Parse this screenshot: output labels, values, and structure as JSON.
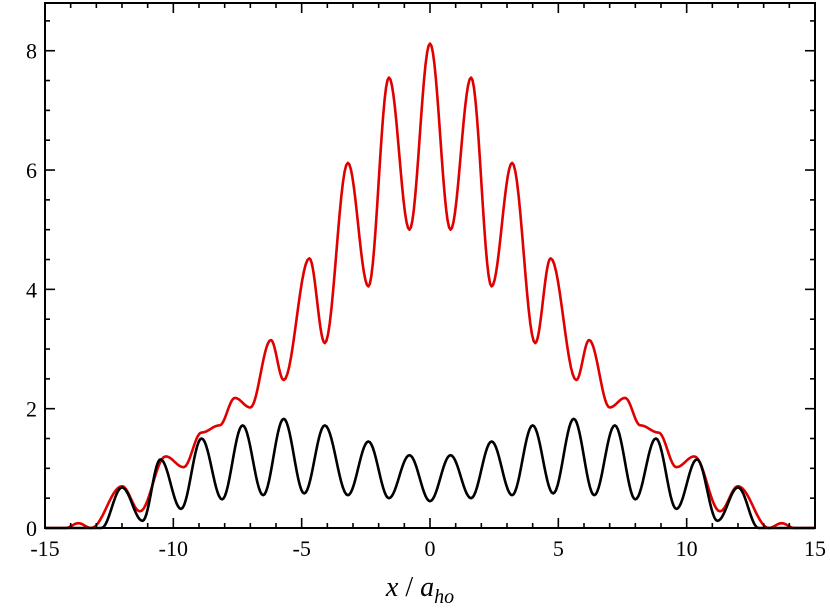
{
  "chart_data": {
    "type": "line",
    "title": "",
    "xlabel": {
      "var": "x",
      "sep": " / ",
      "base": "a",
      "sub": "ho"
    },
    "ylabel": "",
    "xlim": [
      -15,
      15
    ],
    "ylim": [
      0,
      8.8
    ],
    "x_ticks": [
      -15,
      -10,
      -5,
      0,
      5,
      10,
      15
    ],
    "x_tick_labels": [
      "-15",
      "-10",
      "-5",
      "0",
      "5",
      "10",
      "15"
    ],
    "y_ticks": [
      0,
      2,
      4,
      6,
      8
    ],
    "y_tick_labels": [
      "0",
      "2",
      "4",
      "6",
      "8"
    ],
    "x_minor_step": 1,
    "y_minor_step": 0.5,
    "grid": false,
    "legend": "none",
    "colors": {
      "red_series": "#e00000",
      "black_series": "#000000"
    },
    "series": [
      {
        "color": "#e00000",
        "peaks": [
          {
            "x": -13.7,
            "y": 0.08
          },
          {
            "x": -12.0,
            "y": 0.7
          },
          {
            "x": -10.3,
            "y": 1.2
          },
          {
            "x": -8.9,
            "y": 1.6
          },
          {
            "x": -7.6,
            "y": 2.18
          },
          {
            "x": -6.2,
            "y": 3.15
          },
          {
            "x": -4.7,
            "y": 4.52
          },
          {
            "x": -3.2,
            "y": 6.12
          },
          {
            "x": -1.6,
            "y": 7.55
          },
          {
            "x": 0.0,
            "y": 8.12
          },
          {
            "x": 1.6,
            "y": 7.55
          },
          {
            "x": 3.2,
            "y": 6.12
          },
          {
            "x": 4.7,
            "y": 4.52
          },
          {
            "x": 6.2,
            "y": 3.15
          },
          {
            "x": 7.6,
            "y": 2.18
          },
          {
            "x": 8.9,
            "y": 1.6
          },
          {
            "x": 10.3,
            "y": 1.2
          },
          {
            "x": 12.0,
            "y": 0.7
          },
          {
            "x": 13.7,
            "y": 0.08
          }
        ],
        "valleys": [
          {
            "x": -15.0,
            "y": 0.0
          },
          {
            "x": -14.2,
            "y": 0.0
          },
          {
            "x": -13.2,
            "y": 0.0
          },
          {
            "x": -11.3,
            "y": 0.28
          },
          {
            "x": -9.6,
            "y": 1.02
          },
          {
            "x": -8.2,
            "y": 1.72
          },
          {
            "x": -7.0,
            "y": 2.02
          },
          {
            "x": -5.7,
            "y": 2.48
          },
          {
            "x": -4.1,
            "y": 3.1
          },
          {
            "x": -2.4,
            "y": 4.05
          },
          {
            "x": -0.8,
            "y": 5.0
          },
          {
            "x": 0.8,
            "y": 5.0
          },
          {
            "x": 2.4,
            "y": 4.05
          },
          {
            "x": 4.1,
            "y": 3.1
          },
          {
            "x": 5.7,
            "y": 2.48
          },
          {
            "x": 7.0,
            "y": 2.02
          },
          {
            "x": 8.2,
            "y": 1.72
          },
          {
            "x": 9.6,
            "y": 1.02
          },
          {
            "x": 11.3,
            "y": 0.28
          },
          {
            "x": 13.2,
            "y": 0.0
          },
          {
            "x": 14.2,
            "y": 0.0
          },
          {
            "x": 15.0,
            "y": 0.0
          }
        ]
      },
      {
        "color": "#000000",
        "peaks": [
          {
            "x": -12.0,
            "y": 0.68
          },
          {
            "x": -10.5,
            "y": 1.15
          },
          {
            "x": -8.9,
            "y": 1.5
          },
          {
            "x": -7.3,
            "y": 1.72
          },
          {
            "x": -5.7,
            "y": 1.83
          },
          {
            "x": -4.1,
            "y": 1.72
          },
          {
            "x": -2.4,
            "y": 1.45
          },
          {
            "x": -0.8,
            "y": 1.22
          },
          {
            "x": 0.8,
            "y": 1.22
          },
          {
            "x": 2.4,
            "y": 1.45
          },
          {
            "x": 4.0,
            "y": 1.72
          },
          {
            "x": 5.6,
            "y": 1.83
          },
          {
            "x": 7.2,
            "y": 1.72
          },
          {
            "x": 8.8,
            "y": 1.5
          },
          {
            "x": 10.4,
            "y": 1.15
          },
          {
            "x": 12.0,
            "y": 0.68
          }
        ],
        "valleys": [
          {
            "x": -15.0,
            "y": 0.0
          },
          {
            "x": -12.8,
            "y": 0.0
          },
          {
            "x": -11.2,
            "y": 0.12
          },
          {
            "x": -9.7,
            "y": 0.32
          },
          {
            "x": -8.1,
            "y": 0.48
          },
          {
            "x": -6.5,
            "y": 0.55
          },
          {
            "x": -4.9,
            "y": 0.58
          },
          {
            "x": -3.2,
            "y": 0.55
          },
          {
            "x": -1.6,
            "y": 0.5
          },
          {
            "x": 0.0,
            "y": 0.45
          },
          {
            "x": 1.6,
            "y": 0.5
          },
          {
            "x": 3.2,
            "y": 0.55
          },
          {
            "x": 4.8,
            "y": 0.58
          },
          {
            "x": 6.4,
            "y": 0.55
          },
          {
            "x": 8.0,
            "y": 0.48
          },
          {
            "x": 9.6,
            "y": 0.32
          },
          {
            "x": 11.2,
            "y": 0.12
          },
          {
            "x": 12.8,
            "y": 0.0
          },
          {
            "x": 15.0,
            "y": 0.0
          }
        ]
      }
    ]
  }
}
